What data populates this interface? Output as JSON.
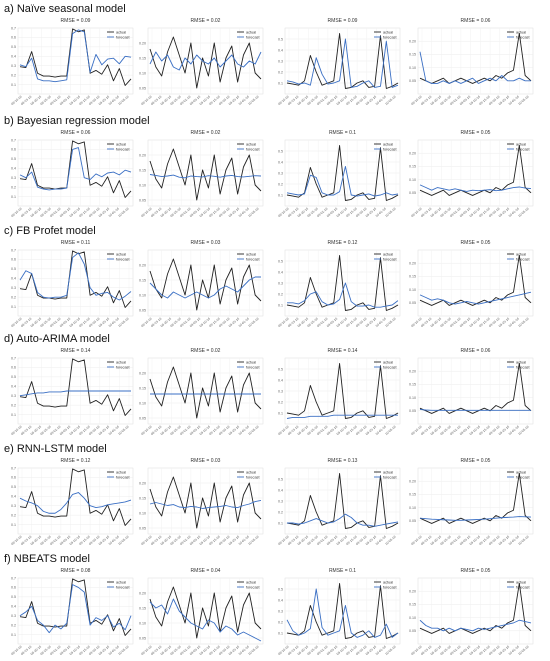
{
  "figure": {
    "rows": [
      {
        "label": "a) Naïve seasonal model",
        "rmse": [
          "RMSE = 0.09",
          "RMSE = 0.02",
          "RMSE = 0.09",
          "RMSE = 0.06"
        ]
      },
      {
        "label": "b) Bayesian regression model",
        "rmse": [
          "RMSE = 0.06",
          "RMSE = 0.02",
          "RMSE = 0.1",
          "RMSE = 0.05"
        ]
      },
      {
        "label": "c) FB Profet  model",
        "rmse": [
          "RMSE = 0.11",
          "RMSE = 0.03",
          "RMSE = 0.12",
          "RMSE = 0.05"
        ]
      },
      {
        "label": "d) Auto-ARIMA model",
        "rmse": [
          "RMSE = 0.14",
          "RMSE = 0.02",
          "RMSE = 0.14",
          "RMSE = 0.06"
        ]
      },
      {
        "label": "e) RNN-LSTM model",
        "rmse": [
          "RMSE = 0.12",
          "RMSE = 0.03",
          "RMSE = 0.13",
          "RMSE = 0.05"
        ]
      },
      {
        "label": "f) NBEATS model",
        "rmse": [
          "RMSE = 0.08",
          "RMSE = 0.04",
          "RMSE = 0.1",
          "RMSE = 0.05"
        ]
      }
    ],
    "legend": {
      "actual": "actual",
      "forecast": "forecast"
    },
    "colors": {
      "actual": "#222222",
      "forecast": "#3a6fc4"
    }
  },
  "chart_data": {
    "type": "line",
    "grid": true,
    "legend_placement": "top-right",
    "columns": [
      {
        "ylim": [
          0.0,
          0.7
        ],
        "yticks": [
          "0.1",
          "0.2",
          "0.3",
          "0.4",
          "0.5",
          "0.6",
          "0.7"
        ],
        "actual": [
          0.29,
          0.28,
          0.45,
          0.22,
          0.19,
          0.19,
          0.18,
          0.19,
          0.19,
          0.69,
          0.66,
          0.68,
          0.22,
          0.25,
          0.21,
          0.31,
          0.14,
          0.27,
          0.09,
          0.16
        ],
        "forecast": {
          "naive": [
            0.31,
            0.29,
            0.38,
            0.16,
            0.14,
            0.14,
            0.13,
            0.14,
            0.15,
            0.64,
            0.68,
            0.66,
            0.23,
            0.42,
            0.31,
            0.37,
            0.38,
            0.32,
            0.4,
            0.39
          ],
          "bayes": [
            0.33,
            0.3,
            0.36,
            0.2,
            0.18,
            0.17,
            0.18,
            0.18,
            0.19,
            0.6,
            0.62,
            0.3,
            0.28,
            0.34,
            0.31,
            0.35,
            0.36,
            0.33,
            0.38,
            0.36
          ],
          "prophet": [
            0.38,
            0.48,
            0.45,
            0.25,
            0.2,
            0.19,
            0.2,
            0.2,
            0.22,
            0.62,
            0.67,
            0.55,
            0.3,
            0.22,
            0.24,
            0.25,
            0.2,
            0.17,
            0.21,
            0.26
          ],
          "arima": [
            0.3,
            0.31,
            0.32,
            0.33,
            0.33,
            0.34,
            0.34,
            0.34,
            0.35,
            0.35,
            0.35,
            0.35,
            0.35,
            0.35,
            0.35,
            0.35,
            0.35,
            0.35,
            0.35,
            0.35
          ],
          "lstm": [
            0.38,
            0.35,
            0.33,
            0.3,
            0.24,
            0.22,
            0.22,
            0.26,
            0.33,
            0.42,
            0.44,
            0.38,
            0.3,
            0.28,
            0.29,
            0.31,
            0.32,
            0.33,
            0.34,
            0.36
          ],
          "nbeats": [
            0.3,
            0.34,
            0.4,
            0.25,
            0.2,
            0.12,
            0.2,
            0.16,
            0.22,
            0.63,
            0.6,
            0.55,
            0.2,
            0.28,
            0.25,
            0.3,
            0.18,
            0.22,
            0.15,
            0.3
          ]
        }
      },
      {
        "ylim": [
          0.03,
          0.25
        ],
        "yticks": [
          "0.05",
          "0.10",
          "0.15",
          "0.20"
        ],
        "actual": [
          0.18,
          0.12,
          0.09,
          0.17,
          0.22,
          0.16,
          0.1,
          0.2,
          0.05,
          0.15,
          0.09,
          0.2,
          0.07,
          0.15,
          0.19,
          0.07,
          0.16,
          0.2,
          0.1,
          0.08
        ],
        "forecast": {
          "naive": [
            0.13,
            0.17,
            0.14,
            0.16,
            0.12,
            0.11,
            0.15,
            0.13,
            0.16,
            0.14,
            0.13,
            0.15,
            0.12,
            0.14,
            0.16,
            0.13,
            0.12,
            0.14,
            0.13,
            0.17
          ],
          "bayes": [
            0.135,
            0.132,
            0.128,
            0.13,
            0.133,
            0.126,
            0.124,
            0.13,
            0.128,
            0.127,
            0.131,
            0.129,
            0.126,
            0.13,
            0.132,
            0.128,
            0.127,
            0.129,
            0.131,
            0.13
          ],
          "prophet": [
            0.14,
            0.12,
            0.1,
            0.09,
            0.11,
            0.1,
            0.09,
            0.1,
            0.11,
            0.1,
            0.09,
            0.1,
            0.12,
            0.13,
            0.12,
            0.11,
            0.13,
            0.15,
            0.16,
            0.16
          ],
          "arima": [
            0.13,
            0.13,
            0.13,
            0.13,
            0.13,
            0.13,
            0.13,
            0.13,
            0.13,
            0.13,
            0.13,
            0.13,
            0.13,
            0.13,
            0.13,
            0.13,
            0.13,
            0.13,
            0.13,
            0.13
          ],
          "lstm": [
            0.13,
            0.135,
            0.13,
            0.125,
            0.128,
            0.12,
            0.118,
            0.122,
            0.12,
            0.115,
            0.118,
            0.12,
            0.122,
            0.125,
            0.12,
            0.118,
            0.125,
            0.13,
            0.138,
            0.142
          ],
          "nbeats": [
            0.17,
            0.15,
            0.16,
            0.13,
            0.18,
            0.14,
            0.12,
            0.1,
            0.09,
            0.08,
            0.11,
            0.1,
            0.07,
            0.09,
            0.08,
            0.06,
            0.07,
            0.06,
            0.05,
            0.04
          ]
        }
      },
      {
        "ylim": [
          0.0,
          0.6
        ],
        "yticks": [
          "0.1",
          "0.2",
          "0.3",
          "0.4",
          "0.5"
        ],
        "actual": [
          0.1,
          0.09,
          0.08,
          0.12,
          0.35,
          0.2,
          0.08,
          0.1,
          0.12,
          0.55,
          0.05,
          0.06,
          0.1,
          0.12,
          0.06,
          0.07,
          0.53,
          0.05,
          0.07,
          0.1
        ],
        "forecast": {
          "naive": [
            0.12,
            0.11,
            0.09,
            0.1,
            0.08,
            0.33,
            0.18,
            0.09,
            0.1,
            0.12,
            0.5,
            0.06,
            0.07,
            0.1,
            0.12,
            0.06,
            0.07,
            0.48,
            0.06,
            0.08
          ],
          "bayes": [
            0.12,
            0.11,
            0.1,
            0.11,
            0.28,
            0.26,
            0.12,
            0.1,
            0.1,
            0.13,
            0.36,
            0.1,
            0.09,
            0.1,
            0.11,
            0.09,
            0.1,
            0.12,
            0.1,
            0.11
          ],
          "prophet": [
            0.12,
            0.12,
            0.11,
            0.14,
            0.2,
            0.22,
            0.13,
            0.1,
            0.11,
            0.15,
            0.3,
            0.13,
            0.09,
            0.09,
            0.1,
            0.08,
            0.08,
            0.09,
            0.1,
            0.14
          ],
          "arima": [
            0.05,
            0.06,
            0.06,
            0.06,
            0.07,
            0.07,
            0.07,
            0.07,
            0.08,
            0.08,
            0.08,
            0.08,
            0.08,
            0.08,
            0.08,
            0.08,
            0.08,
            0.08,
            0.08,
            0.08
          ],
          "lstm": [
            0.1,
            0.1,
            0.09,
            0.1,
            0.12,
            0.14,
            0.12,
            0.1,
            0.11,
            0.14,
            0.18,
            0.15,
            0.1,
            0.08,
            0.08,
            0.07,
            0.08,
            0.09,
            0.1,
            0.11
          ],
          "nbeats": [
            0.22,
            0.12,
            0.08,
            0.1,
            0.14,
            0.5,
            0.15,
            0.08,
            0.1,
            0.12,
            0.35,
            0.1,
            0.06,
            0.08,
            0.12,
            0.06,
            0.08,
            0.18,
            0.06,
            0.1
          ]
        }
      },
      {
        "ylim": [
          0.0,
          0.25
        ],
        "yticks": [
          "0.05",
          "0.10",
          "0.15",
          "0.20"
        ],
        "actual": [
          0.06,
          0.05,
          0.04,
          0.05,
          0.06,
          0.04,
          0.05,
          0.06,
          0.05,
          0.04,
          0.05,
          0.06,
          0.05,
          0.07,
          0.06,
          0.08,
          0.09,
          0.23,
          0.07,
          0.05
        ],
        "forecast": {
          "naive": [
            0.16,
            0.05,
            0.04,
            0.04,
            0.05,
            0.04,
            0.05,
            0.04,
            0.05,
            0.06,
            0.04,
            0.05,
            0.06,
            0.05,
            0.07,
            0.05,
            0.05,
            0.06,
            0.05,
            0.05
          ],
          "bayes": [
            0.08,
            0.07,
            0.06,
            0.07,
            0.065,
            0.06,
            0.065,
            0.06,
            0.055,
            0.06,
            0.058,
            0.06,
            0.062,
            0.058,
            0.06,
            0.065,
            0.07,
            0.072,
            0.068,
            0.066
          ],
          "prophet": [
            0.08,
            0.07,
            0.06,
            0.065,
            0.06,
            0.05,
            0.045,
            0.05,
            0.055,
            0.05,
            0.045,
            0.05,
            0.055,
            0.06,
            0.065,
            0.07,
            0.075,
            0.08,
            0.085,
            0.09
          ],
          "arima": [
            0.055,
            0.053,
            0.052,
            0.052,
            0.052,
            0.052,
            0.052,
            0.052,
            0.052,
            0.052,
            0.052,
            0.052,
            0.052,
            0.052,
            0.052,
            0.052,
            0.052,
            0.052,
            0.052,
            0.052
          ],
          "lstm": [
            0.06,
            0.058,
            0.056,
            0.055,
            0.054,
            0.053,
            0.052,
            0.052,
            0.053,
            0.054,
            0.055,
            0.056,
            0.058,
            0.06,
            0.062,
            0.063,
            0.064,
            0.066,
            0.065,
            0.064
          ],
          "nbeats": [
            0.09,
            0.07,
            0.06,
            0.06,
            0.05,
            0.06,
            0.05,
            0.06,
            0.055,
            0.05,
            0.06,
            0.055,
            0.06,
            0.065,
            0.07,
            0.075,
            0.08,
            0.09,
            0.085,
            0.08
          ]
        }
      }
    ],
    "row_models": [
      "naive",
      "bayes",
      "prophet",
      "arima",
      "lstm",
      "nbeats"
    ],
    "xticks": [
      "08-10-16",
      "08-15-16",
      "08-20-16",
      "08-25-16",
      "09-01-16",
      "09-05-16",
      "09-10-16",
      "09-15-16",
      "09-20-16",
      "09-25-16",
      "10-01-16",
      "10-05-16"
    ]
  }
}
